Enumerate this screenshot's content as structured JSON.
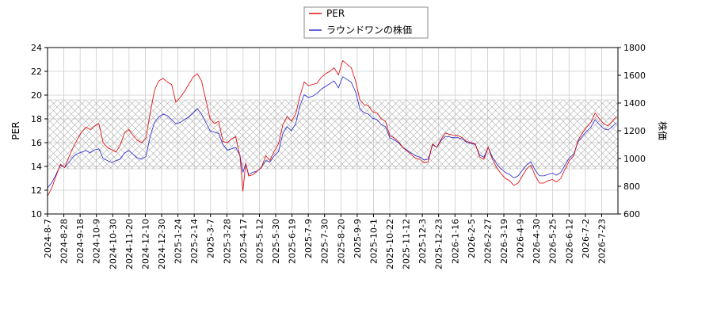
{
  "chart_data": {
    "type": "line",
    "legend": {
      "placement": "top-center",
      "entries": [
        "PER",
        "ラウンドワンの株価"
      ]
    },
    "grid": true,
    "y_left": {
      "label": "PER",
      "range": [
        10,
        24
      ],
      "ticks": [
        "10",
        "12",
        "14",
        "16",
        "18",
        "20",
        "22",
        "24"
      ]
    },
    "y_right": {
      "label": "株価",
      "range": [
        600,
        1800
      ],
      "ticks": [
        "600",
        "800",
        "1000",
        "1200",
        "1400",
        "1600",
        "1800"
      ]
    },
    "shaded_band": {
      "axis": "left",
      "from": 13.8,
      "to": 19.6,
      "pattern": "crosshatch"
    },
    "x_ticks": [
      "2024-8-7",
      "2024-8-28",
      "2024-9-18",
      "2024-10-9",
      "2024-10-30",
      "2024-11-20",
      "2024-12-10",
      "2024-12-30",
      "2025-1-24",
      "2025-2-14",
      "2025-3-7",
      "2025-3-28",
      "2025-4-17",
      "2025-5-12",
      "2025-5-30",
      "2025-6-19",
      "2025-7-9",
      "2025-7-30",
      "2025-8-20",
      "2025-9-9",
      "2025-10-1",
      "2025-10-22",
      "2025-11-12",
      "2025-12-3",
      "2025-12-23",
      "2026-1-16",
      "2026-2-5",
      "2026-2-27",
      "2026-3-19",
      "2026-4-9",
      "2026-4-30",
      "2026-5-25",
      "2026-6-12",
      "2026-7-2",
      "2026-7-23"
    ],
    "series": [
      {
        "name": "PER",
        "axis": "left",
        "color": "#dd0000",
        "values": [
          [
            0,
            11.5
          ],
          [
            3,
            12.2
          ],
          [
            6,
            13.2
          ],
          [
            9,
            14.2
          ],
          [
            12,
            13.9
          ],
          [
            15,
            14.8
          ],
          [
            18,
            15.6
          ],
          [
            21,
            16.3
          ],
          [
            24,
            16.9
          ],
          [
            27,
            17.3
          ],
          [
            30,
            17.1
          ],
          [
            33,
            17.4
          ],
          [
            36,
            17.6
          ],
          [
            39,
            16.0
          ],
          [
            42,
            15.6
          ],
          [
            45,
            15.4
          ],
          [
            48,
            15.2
          ],
          [
            51,
            15.8
          ],
          [
            54,
            16.8
          ],
          [
            57,
            17.1
          ],
          [
            60,
            16.6
          ],
          [
            63,
            16.2
          ],
          [
            66,
            16.0
          ],
          [
            69,
            16.4
          ],
          [
            72,
            18.5
          ],
          [
            75,
            20.4
          ],
          [
            78,
            21.2
          ],
          [
            81,
            21.4
          ],
          [
            84,
            21.1
          ],
          [
            87,
            20.9
          ],
          [
            90,
            19.4
          ],
          [
            93,
            19.8
          ],
          [
            96,
            20.3
          ],
          [
            99,
            20.9
          ],
          [
            102,
            21.5
          ],
          [
            105,
            21.8
          ],
          [
            108,
            21.2
          ],
          [
            111,
            19.6
          ],
          [
            114,
            18.0
          ],
          [
            117,
            17.6
          ],
          [
            120,
            17.8
          ],
          [
            123,
            16.1
          ],
          [
            126,
            16.0
          ],
          [
            129,
            16.3
          ],
          [
            132,
            16.5
          ],
          [
            135,
            14.8
          ],
          [
            137,
            11.9
          ],
          [
            139,
            14.3
          ],
          [
            141,
            13.2
          ],
          [
            144,
            13.3
          ],
          [
            147,
            13.6
          ],
          [
            150,
            13.9
          ],
          [
            153,
            14.9
          ],
          [
            156,
            14.5
          ],
          [
            159,
            15.3
          ],
          [
            162,
            15.9
          ],
          [
            165,
            17.5
          ],
          [
            168,
            18.2
          ],
          [
            171,
            17.8
          ],
          [
            174,
            18.4
          ],
          [
            177,
            19.9
          ],
          [
            180,
            21.1
          ],
          [
            183,
            20.8
          ],
          [
            186,
            20.9
          ],
          [
            189,
            21.0
          ],
          [
            192,
            21.5
          ],
          [
            195,
            21.8
          ],
          [
            198,
            22.0
          ],
          [
            201,
            22.3
          ],
          [
            204,
            21.7
          ],
          [
            207,
            22.9
          ],
          [
            210,
            22.6
          ],
          [
            213,
            22.3
          ],
          [
            216,
            21.2
          ],
          [
            219,
            19.6
          ],
          [
            222,
            19.2
          ],
          [
            225,
            19.1
          ],
          [
            228,
            18.6
          ],
          [
            231,
            18.5
          ],
          [
            234,
            18.0
          ],
          [
            237,
            17.8
          ],
          [
            240,
            16.6
          ],
          [
            243,
            16.4
          ],
          [
            246,
            16.1
          ],
          [
            249,
            15.6
          ],
          [
            252,
            15.3
          ],
          [
            255,
            15.0
          ],
          [
            258,
            14.7
          ],
          [
            261,
            14.6
          ],
          [
            264,
            14.3
          ],
          [
            267,
            14.4
          ],
          [
            270,
            15.9
          ],
          [
            273,
            15.6
          ],
          [
            276,
            16.3
          ],
          [
            279,
            16.8
          ],
          [
            282,
            16.7
          ],
          [
            285,
            16.6
          ],
          [
            288,
            16.6
          ],
          [
            291,
            16.4
          ],
          [
            294,
            16.1
          ],
          [
            297,
            16.0
          ],
          [
            300,
            15.9
          ],
          [
            303,
            14.8
          ],
          [
            306,
            14.6
          ],
          [
            309,
            15.6
          ],
          [
            312,
            14.6
          ],
          [
            315,
            13.9
          ],
          [
            318,
            13.4
          ],
          [
            321,
            13.0
          ],
          [
            324,
            12.8
          ],
          [
            327,
            12.4
          ],
          [
            330,
            12.6
          ],
          [
            333,
            13.2
          ],
          [
            336,
            13.8
          ],
          [
            339,
            14.1
          ],
          [
            342,
            13.2
          ],
          [
            345,
            12.6
          ],
          [
            348,
            12.6
          ],
          [
            351,
            12.8
          ],
          [
            354,
            12.9
          ],
          [
            357,
            12.7
          ],
          [
            360,
            13.0
          ],
          [
            363,
            13.8
          ],
          [
            366,
            14.5
          ],
          [
            369,
            14.9
          ],
          [
            372,
            16.2
          ],
          [
            375,
            16.8
          ],
          [
            378,
            17.3
          ],
          [
            381,
            17.7
          ],
          [
            384,
            18.5
          ],
          [
            387,
            18.0
          ],
          [
            390,
            17.6
          ],
          [
            393,
            17.4
          ],
          [
            396,
            17.8
          ],
          [
            399,
            18.2
          ]
        ]
      },
      {
        "name": "ラウンドワンの株価",
        "axis": "right",
        "color": "#2222cc",
        "values": [
          [
            0,
            788
          ],
          [
            3,
            826
          ],
          [
            6,
            885
          ],
          [
            9,
            952
          ],
          [
            12,
            935
          ],
          [
            15,
            972
          ],
          [
            18,
            1012
          ],
          [
            21,
            1035
          ],
          [
            24,
            1046
          ],
          [
            27,
            1058
          ],
          [
            30,
            1041
          ],
          [
            33,
            1062
          ],
          [
            36,
            1070
          ],
          [
            39,
            1000
          ],
          [
            42,
            985
          ],
          [
            45,
            970
          ],
          [
            48,
            985
          ],
          [
            51,
            995
          ],
          [
            54,
            1040
          ],
          [
            57,
            1058
          ],
          [
            60,
            1030
          ],
          [
            63,
            1005
          ],
          [
            66,
            995
          ],
          [
            69,
            1015
          ],
          [
            72,
            1160
          ],
          [
            75,
            1260
          ],
          [
            78,
            1300
          ],
          [
            81,
            1320
          ],
          [
            84,
            1310
          ],
          [
            87,
            1280
          ],
          [
            90,
            1250
          ],
          [
            93,
            1260
          ],
          [
            96,
            1280
          ],
          [
            99,
            1300
          ],
          [
            102,
            1330
          ],
          [
            105,
            1360
          ],
          [
            108,
            1320
          ],
          [
            111,
            1260
          ],
          [
            114,
            1200
          ],
          [
            117,
            1190
          ],
          [
            120,
            1180
          ],
          [
            123,
            1100
          ],
          [
            126,
            1060
          ],
          [
            129,
            1070
          ],
          [
            132,
            1080
          ],
          [
            135,
            1020
          ],
          [
            137,
            900
          ],
          [
            139,
            960
          ],
          [
            141,
            885
          ],
          [
            144,
            900
          ],
          [
            147,
            910
          ],
          [
            150,
            935
          ],
          [
            153,
            985
          ],
          [
            156,
            975
          ],
          [
            159,
            1020
          ],
          [
            162,
            1050
          ],
          [
            165,
            1180
          ],
          [
            168,
            1230
          ],
          [
            171,
            1200
          ],
          [
            174,
            1250
          ],
          [
            177,
            1380
          ],
          [
            180,
            1460
          ],
          [
            183,
            1440
          ],
          [
            186,
            1450
          ],
          [
            189,
            1470
          ],
          [
            192,
            1500
          ],
          [
            195,
            1520
          ],
          [
            198,
            1540
          ],
          [
            201,
            1560
          ],
          [
            204,
            1510
          ],
          [
            207,
            1590
          ],
          [
            210,
            1570
          ],
          [
            213,
            1550
          ],
          [
            216,
            1480
          ],
          [
            219,
            1360
          ],
          [
            222,
            1330
          ],
          [
            225,
            1320
          ],
          [
            228,
            1290
          ],
          [
            231,
            1280
          ],
          [
            234,
            1245
          ],
          [
            237,
            1230
          ],
          [
            240,
            1150
          ],
          [
            243,
            1135
          ],
          [
            246,
            1115
          ],
          [
            249,
            1080
          ],
          [
            252,
            1060
          ],
          [
            255,
            1040
          ],
          [
            258,
            1020
          ],
          [
            261,
            1010
          ],
          [
            264,
            990
          ],
          [
            267,
            995
          ],
          [
            270,
            1100
          ],
          [
            273,
            1080
          ],
          [
            276,
            1130
          ],
          [
            279,
            1160
          ],
          [
            282,
            1155
          ],
          [
            285,
            1150
          ],
          [
            288,
            1150
          ],
          [
            291,
            1140
          ],
          [
            294,
            1115
          ],
          [
            297,
            1110
          ],
          [
            300,
            1100
          ],
          [
            303,
            1025
          ],
          [
            306,
            1010
          ],
          [
            309,
            1080
          ],
          [
            312,
            1010
          ],
          [
            315,
            960
          ],
          [
            318,
            925
          ],
          [
            321,
            900
          ],
          [
            324,
            885
          ],
          [
            327,
            860
          ],
          [
            330,
            875
          ],
          [
            333,
            915
          ],
          [
            336,
            955
          ],
          [
            339,
            975
          ],
          [
            342,
            915
          ],
          [
            345,
            875
          ],
          [
            348,
            875
          ],
          [
            351,
            885
          ],
          [
            354,
            895
          ],
          [
            357,
            880
          ],
          [
            360,
            900
          ],
          [
            363,
            955
          ],
          [
            366,
            1005
          ],
          [
            369,
            1030
          ],
          [
            372,
            1120
          ],
          [
            375,
            1160
          ],
          [
            378,
            1195
          ],
          [
            381,
            1225
          ],
          [
            384,
            1280
          ],
          [
            387,
            1245
          ],
          [
            390,
            1215
          ],
          [
            393,
            1205
          ],
          [
            396,
            1230
          ],
          [
            399,
            1260
          ]
        ]
      }
    ]
  }
}
